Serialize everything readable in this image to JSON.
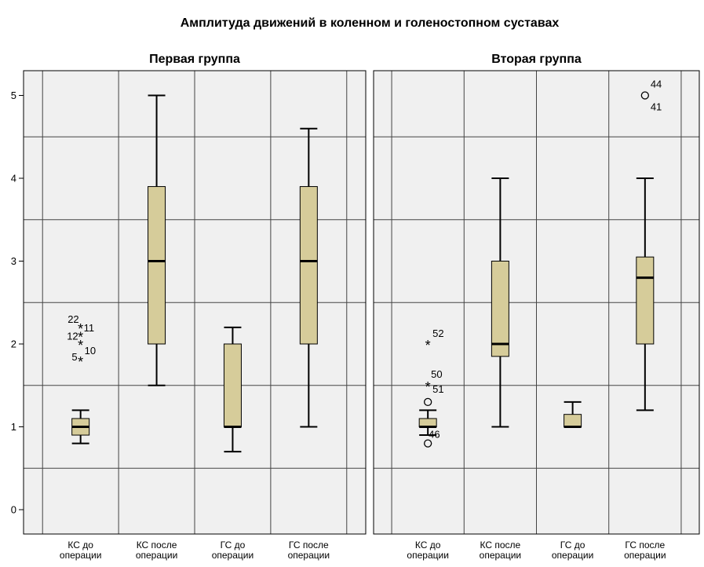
{
  "chart_data": {
    "type": "boxplot",
    "title": "Амплитуда движений в коленном и голеностопном суставах",
    "ylim": [
      -0.3,
      5.3
    ],
    "yticks": [
      "0",
      "1",
      "2",
      "3",
      "4",
      "5"
    ],
    "grid": true,
    "colors": {
      "box": "#d6cc9a",
      "frame": "#000000",
      "grid": "#444444",
      "plot_bg": "#f0f0f0"
    },
    "panels": [
      {
        "title": "Первая группа",
        "categories": [
          {
            "label_lines": [
              "КС до",
              "операции"
            ],
            "whisker_low": 0.8,
            "q1": 0.9,
            "median": 1.0,
            "q3": 1.1,
            "whisker_high": 1.2,
            "outliers": [
              {
                "value": 2.2,
                "kind": "extreme",
                "labels": [
                  "22",
                  "11"
                ]
              },
              {
                "value": 2.1,
                "kind": "extreme",
                "labels": [
                  "12"
                ]
              },
              {
                "value": 2.0,
                "kind": "extreme",
                "labels": [
                  "10"
                ]
              },
              {
                "value": 1.8,
                "kind": "extreme",
                "labels": [
                  "5"
                ]
              }
            ]
          },
          {
            "label_lines": [
              "КС после",
              "операции"
            ],
            "whisker_low": 1.5,
            "q1": 2.0,
            "median": 3.0,
            "q3": 3.9,
            "whisker_high": 5.0,
            "outliers": []
          },
          {
            "label_lines": [
              "ГС до",
              "операции"
            ],
            "whisker_low": 0.7,
            "q1": 1.0,
            "median": 1.0,
            "q3": 2.0,
            "whisker_high": 2.2,
            "outliers": []
          },
          {
            "label_lines": [
              "ГС после",
              "операции"
            ],
            "whisker_low": 1.0,
            "q1": 2.0,
            "median": 3.0,
            "q3": 3.9,
            "whisker_high": 4.6,
            "outliers": []
          }
        ]
      },
      {
        "title": "Вторая группа",
        "categories": [
          {
            "label_lines": [
              "КС до",
              "операции"
            ],
            "whisker_low": 0.9,
            "q1": 1.0,
            "median": 1.0,
            "q3": 1.1,
            "whisker_high": 1.2,
            "outliers": [
              {
                "value": 2.0,
                "kind": "extreme",
                "labels": [
                  "52"
                ]
              },
              {
                "value": 1.5,
                "kind": "extreme",
                "labels": [
                  "50",
                  "51"
                ]
              },
              {
                "value": 1.3,
                "kind": "outlier",
                "labels": []
              },
              {
                "value": 0.8,
                "kind": "outlier",
                "labels": [
                  "46"
                ]
              }
            ]
          },
          {
            "label_lines": [
              "КС после",
              "операции"
            ],
            "whisker_low": 1.0,
            "q1": 1.85,
            "median": 2.0,
            "q3": 3.0,
            "whisker_high": 4.0,
            "outliers": []
          },
          {
            "label_lines": [
              "ГС до",
              "операции"
            ],
            "whisker_low": 1.0,
            "q1": 1.0,
            "median": 1.0,
            "q3": 1.15,
            "whisker_high": 1.3,
            "outliers": []
          },
          {
            "label_lines": [
              "ГС после",
              "операции"
            ],
            "whisker_low": 1.2,
            "q1": 2.0,
            "median": 2.8,
            "q3": 3.05,
            "whisker_high": 4.0,
            "outliers": [
              {
                "value": 5.0,
                "kind": "outlier",
                "labels": [
                  "44",
                  "41"
                ]
              }
            ]
          }
        ]
      }
    ]
  }
}
